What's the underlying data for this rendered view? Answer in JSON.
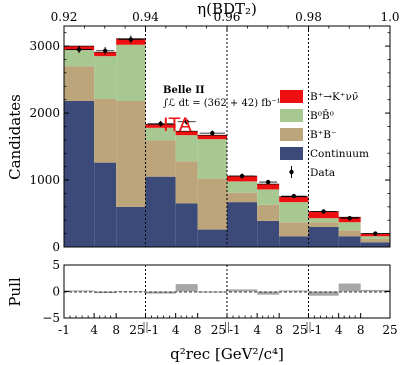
{
  "chart_data": {
    "type": "bar",
    "stacked": true,
    "top_axis": {
      "label": "η(BDT₂)",
      "ticks": [
        "0.92",
        "0.94",
        "0.96",
        "0.98",
        "1.0"
      ]
    },
    "x_axis": {
      "label": "q²rec [GeV²/c⁴]",
      "ticks": [
        "-1",
        "4",
        "8",
        "25",
        "-1",
        "4",
        "8",
        "25",
        "-1",
        "4",
        "8",
        "25",
        "-1",
        "4",
        "8",
        "25"
      ]
    },
    "y_axis": {
      "label": "Candidates",
      "ticks": [
        "0",
        "1000",
        "2000",
        "3000"
      ],
      "ylim": [
        0,
        3300
      ]
    },
    "pull_axis": {
      "label": "Pull",
      "ticks": [
        "5",
        "0",
        "−5"
      ],
      "ylim": [
        -5,
        5
      ]
    },
    "bins_per_region": 3,
    "regions": 4,
    "series": [
      {
        "name": "Continuum",
        "color": "#3b4a78",
        "values": [
          2180,
          1260,
          600,
          1050,
          650,
          260,
          670,
          390,
          160,
          300,
          160,
          70
        ]
      },
      {
        "name": "B⁺B⁻",
        "color": "#bca57a",
        "values": [
          520,
          950,
          1580,
          540,
          630,
          760,
          140,
          240,
          210,
          70,
          90,
          50
        ]
      },
      {
        "name": "B⁰B̄⁰",
        "color": "#a8c892",
        "values": [
          240,
          640,
          840,
          190,
          390,
          590,
          170,
          230,
          300,
          60,
          120,
          40
        ]
      },
      {
        "name": "B⁺→K⁺νν̄",
        "color": "#ee1010",
        "values": [
          60,
          60,
          90,
          50,
          60,
          60,
          80,
          80,
          80,
          100,
          75,
          40
        ]
      }
    ],
    "data_points": {
      "name": "Data",
      "values": [
        2950,
        2930,
        3100,
        1840,
        1870,
        1700,
        1060,
        970,
        760,
        530,
        430,
        200
      ],
      "errors": [
        55,
        55,
        56,
        43,
        43,
        41,
        33,
        31,
        28,
        23,
        21,
        14
      ]
    },
    "pulls": [
      0.2,
      -0.3,
      0.1,
      -0.4,
      1.4,
      -0.2,
      0.4,
      -0.6,
      0.2,
      -0.8,
      1.5,
      0.3
    ],
    "annotations": {
      "experiment": "Belle II",
      "luminosity": "∫ℒ dt = (362 + 42) fb⁻¹",
      "analysis": "ITA"
    }
  }
}
